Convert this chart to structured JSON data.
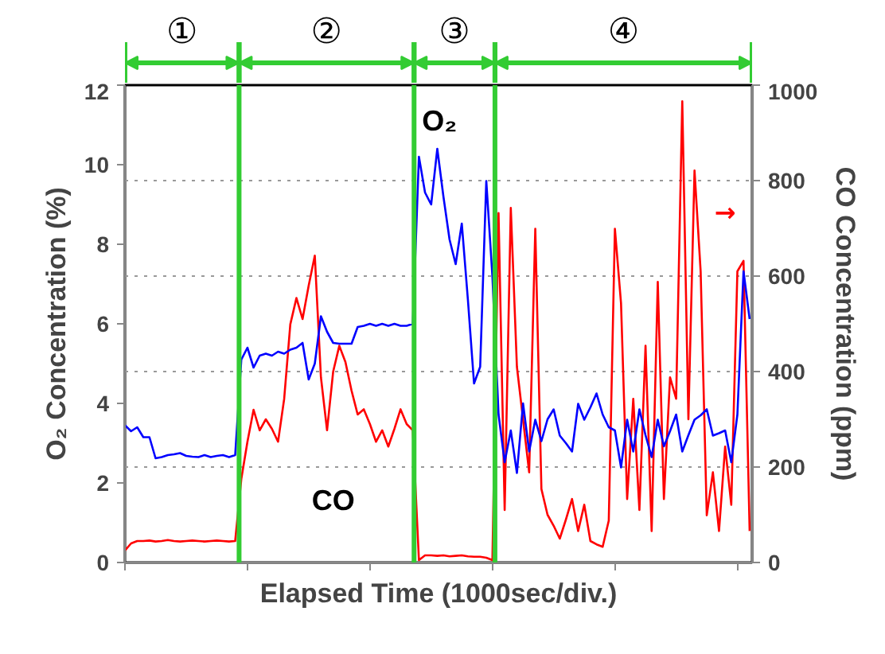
{
  "chart_data": {
    "type": "line",
    "xlabel": "Elapsed Time (1000sec/div.)",
    "ylabel": "O₂ Concentration (%)",
    "y2label": "CO Concentration (ppm)",
    "categories": [
      null,
      null,
      null,
      null,
      null,
      null,
      null,
      null,
      null,
      null,
      null,
      null,
      null,
      null,
      null,
      null,
      null,
      null,
      null,
      null,
      null,
      null,
      null,
      null,
      null,
      null,
      null,
      null,
      null,
      null,
      null,
      null,
      null,
      null,
      null,
      null,
      null,
      null,
      null,
      null,
      null,
      null,
      null,
      null,
      null,
      null,
      null,
      null,
      null,
      null,
      null,
      null,
      null,
      null,
      null,
      null,
      null,
      null,
      null,
      null,
      null,
      null,
      null,
      null,
      null,
      null,
      null,
      null,
      null,
      null,
      null,
      null,
      null,
      null,
      null,
      null,
      null,
      null,
      null,
      null,
      null,
      null,
      null,
      null,
      null,
      null,
      null,
      null,
      null,
      null,
      null,
      null,
      null,
      null,
      null,
      null,
      null,
      null,
      null,
      null,
      null,
      null,
      null
    ],
    "ylim": [
      0,
      12
    ],
    "yticks": [
      0,
      2,
      4,
      6,
      8,
      10,
      12
    ],
    "y2lim": [
      0,
      1000
    ],
    "y2ticks": [
      0,
      200,
      400,
      600,
      800,
      1000
    ],
    "grid": "y2",
    "line_style": "solid",
    "series": [
      {
        "name": "CO",
        "color": "#ff0000",
        "axis": "y2",
        "values": [
          25,
          40,
          45,
          45,
          46,
          44,
          45,
          47,
          45,
          44,
          45,
          46,
          45,
          44,
          45,
          46,
          45,
          44,
          45,
          175,
          253,
          320,
          277,
          300,
          280,
          253,
          343,
          499,
          554,
          510,
          580,
          643,
          388,
          277,
          400,
          454,
          420,
          360,
          310,
          321,
          290,
          253,
          277,
          243,
          280,
          321,
          290,
          277,
          5,
          15,
          15,
          14,
          15,
          13,
          14,
          15,
          13,
          12,
          12,
          10,
          5,
          732,
          110,
          743,
          410,
          300,
          189,
          699,
          154,
          100,
          77,
          50,
          90,
          133,
          66,
          121,
          45,
          38,
          33,
          88,
          699,
          543,
          133,
          343,
          110,
          454,
          66,
          588,
          133,
          388,
          343,
          966,
          300,
          821,
          610,
          99,
          189,
          66,
          243,
          121,
          610,
          632,
          66
        ]
      },
      {
        "name": "O₂",
        "color": "#0000ff",
        "values": [
          3.45,
          3.3,
          3.4,
          3.15,
          3.15,
          2.62,
          2.65,
          2.7,
          2.72,
          2.75,
          2.68,
          2.66,
          2.65,
          2.7,
          2.65,
          2.68,
          2.7,
          2.65,
          2.7,
          5.1,
          5.4,
          4.9,
          5.2,
          5.25,
          5.2,
          5.3,
          5.25,
          5.35,
          5.4,
          5.52,
          4.6,
          5.0,
          6.19,
          5.8,
          5.52,
          5.5,
          5.5,
          5.5,
          5.92,
          5.95,
          6.0,
          5.95,
          6.0,
          5.95,
          6.0,
          5.95,
          5.95,
          6.0,
          10.2,
          9.3,
          9.0,
          10.4,
          9.2,
          8.12,
          7.5,
          8.52,
          6.6,
          4.5,
          4.92,
          9.59,
          7.19,
          3.72,
          2.52,
          3.32,
          2.25,
          4.0,
          2.79,
          3.59,
          3.05,
          3.6,
          3.85,
          3.19,
          3.0,
          2.79,
          3.99,
          3.59,
          3.9,
          4.25,
          3.72,
          3.4,
          3.32,
          2.39,
          3.59,
          2.79,
          3.85,
          3.2,
          2.65,
          3.59,
          2.92,
          3.3,
          3.72,
          2.79,
          3.2,
          3.59,
          3.7,
          3.85,
          3.19,
          3.25,
          3.32,
          2.52,
          3.72,
          7.32,
          6.12
        ]
      }
    ],
    "annotations": [
      "①",
      "②",
      "③",
      "④",
      "→"
    ]
  }
}
